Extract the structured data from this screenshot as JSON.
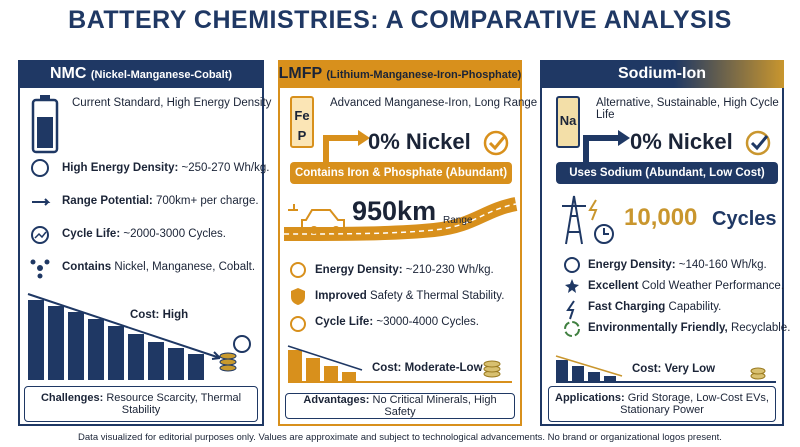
{
  "header": {
    "title": "BATTERY CHEMISTRIES: A COMPARATIVE ANALYSIS"
  },
  "columns": [
    {
      "name": "NMC",
      "full_name": "(Nickel-Manganese-Cobalt)",
      "tagline": "Current Standard, High Energy Density",
      "features": [
        {
          "bold": "High Energy Density:",
          "text": "~250-270 Wh/kg."
        },
        {
          "bold": "Range Potential:",
          "text": "700km+ per charge."
        },
        {
          "bold": "Cycle Life:",
          "text": "~2000-3000 Cycles."
        },
        {
          "bold": "Contains",
          "text": "Nickel, Manganese, Cobalt."
        }
      ],
      "cost": "Cost: High",
      "footer": {
        "bold": "Challenges:",
        "text": "Resource Scarcity, Thermal Stability"
      }
    },
    {
      "name": "LMFP",
      "full_name": "(Lithium-Manganese-Iron-Phosphate)",
      "tagline": "Advanced Manganese-Iron, Long Range",
      "icon": [
        "Fe",
        "P"
      ],
      "highlight": "0% Nickel",
      "banner": "Contains Iron & Phosphate (Abundant)",
      "range_value": "950km",
      "range_label": "Range",
      "features": [
        {
          "bold": "Energy Density:",
          "text": "~210-230 Wh/kg."
        },
        {
          "bold": "Improved",
          "text": "Safety & Thermal Stability."
        },
        {
          "bold": "Cycle Life:",
          "text": "~3000-4000 Cycles."
        }
      ],
      "cost": "Cost: Moderate-Low",
      "footer": {
        "bold": "Advantages:",
        "text": "No Critical Minerals, High Safety"
      }
    },
    {
      "name": "Sodium-Ion",
      "tagline": "Alternative, Sustainable, High Cycle Life",
      "icon": [
        "Na"
      ],
      "highlight": "0% Nickel",
      "banner": "Uses Sodium (Abundant, Low Cost)",
      "cycles_value": "10,000",
      "cycles_label": "Cycles",
      "features": [
        {
          "bold": "Energy Density:",
          "text": "~140-160 Wh/kg."
        },
        {
          "bold": "Excellent",
          "text": "Cold Weather Performance."
        },
        {
          "bold": "Fast Charging",
          "text": "Capability."
        },
        {
          "bold": "Environmentally Friendly,",
          "text": "Recyclable."
        }
      ],
      "cost": "Cost: Very Low",
      "footer": {
        "bold": "Applications:",
        "text": "Grid Storage, Low-Cost EVs, Stationary Power"
      }
    }
  ],
  "footnote": "Data visualized for editorial purposes only. Values are approximate and subject to technological advancements. No brand or organizational logos present."
}
